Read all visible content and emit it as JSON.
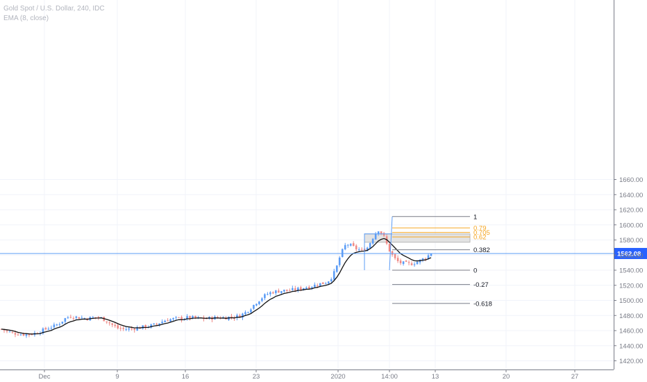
{
  "legend": {
    "title": "Gold Spot / U.S. Dollar, 240, IDC",
    "indicator": "EMA (8, close)"
  },
  "colors": {
    "up": "#5b9cf6",
    "down": "#ef8a86",
    "ema": "#111111",
    "fib_main": "#787b86",
    "fib_highlight": "#f5a623",
    "price_line": "#5b9cf6",
    "price_tag_bg": "#2962ff",
    "grid": "#f0f3fa",
    "zone_fill": "#e3e3e3"
  },
  "chart_data": {
    "type": "candlestick",
    "symbol": "Gold Spot / U.S. Dollar",
    "interval": "240",
    "source": "IDC",
    "indicator": "EMA (8, close)",
    "ylim": [
      1415,
      1678
    ],
    "y_ticks": [
      "1420.00",
      "1440.00",
      "1460.00",
      "1480.00",
      "1500.00",
      "1520.00",
      "1540.00",
      "1560.00",
      "1580.00",
      "1600.00",
      "1620.00",
      "1640.00",
      "1660.00"
    ],
    "x_ticks": [
      "Dec",
      "9",
      "16",
      "23",
      "2020",
      "14:00",
      "13",
      "20",
      "27"
    ],
    "last_price": "1562.08",
    "price_path": [
      1462,
      1459,
      1457,
      1456,
      1455,
      1455,
      1456,
      1458,
      1461,
      1464,
      1466,
      1470,
      1476,
      1479,
      1478,
      1477,
      1476,
      1477,
      1478,
      1476,
      1472,
      1467,
      1463,
      1462,
      1462,
      1463,
      1464,
      1465,
      1466,
      1468,
      1471,
      1474,
      1475,
      1476,
      1476,
      1477,
      1477,
      1476,
      1476,
      1476,
      1477,
      1477,
      1477,
      1478,
      1478,
      1480,
      1484,
      1490,
      1497,
      1503,
      1508,
      1511,
      1512,
      1513,
      1513,
      1514,
      1515,
      1517,
      1518,
      1520,
      1522,
      1523,
      1528,
      1540,
      1562,
      1575,
      1572,
      1568,
      1566,
      1570,
      1583,
      1594,
      1586,
      1568,
      1556,
      1550,
      1549,
      1548,
      1550,
      1553,
      1557,
      1562.08
    ],
    "fib_levels": [
      {
        "ratio": "1",
        "price": 1611,
        "highlight": false
      },
      {
        "ratio": "0.79",
        "price": 1596,
        "highlight": true
      },
      {
        "ratio": "0.705",
        "price": 1590,
        "highlight": true
      },
      {
        "ratio": "0.62",
        "price": 1584,
        "highlight": true
      },
      {
        "ratio": "0.382",
        "price": 1567,
        "highlight": false
      },
      {
        "ratio": "0",
        "price": 1540,
        "highlight": false
      },
      {
        "ratio": "-0.27",
        "price": 1521,
        "highlight": false
      },
      {
        "ratio": "-0.618",
        "price": 1496,
        "highlight": false
      }
    ],
    "zone": {
      "top": 1588,
      "bottom": 1577
    },
    "grid": true
  }
}
